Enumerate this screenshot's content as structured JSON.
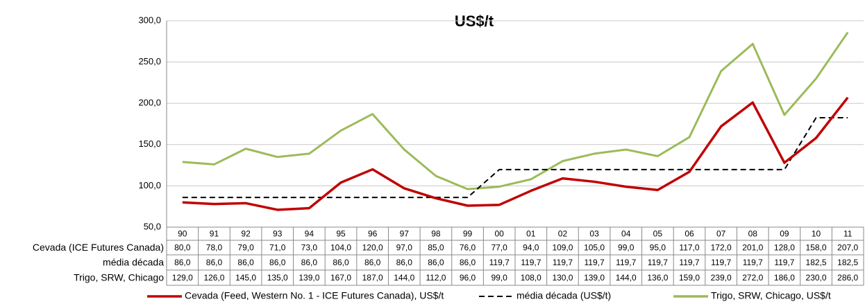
{
  "chart_data": {
    "type": "line",
    "title": "US$/t",
    "categories": [
      "90",
      "91",
      "92",
      "93",
      "94",
      "95",
      "96",
      "97",
      "98",
      "99",
      "00",
      "01",
      "02",
      "03",
      "04",
      "05",
      "06",
      "07",
      "08",
      "09",
      "10",
      "11"
    ],
    "ylim": [
      50,
      300
    ],
    "yticks": [
      {
        "value": 50,
        "label": "50,0"
      },
      {
        "value": 100,
        "label": "100,0"
      },
      {
        "value": 150,
        "label": "150,0"
      },
      {
        "value": 200,
        "label": "200,0"
      },
      {
        "value": 250,
        "label": "250,0"
      },
      {
        "value": 300,
        "label": "300,0"
      }
    ],
    "grid": true,
    "legend": "bottom",
    "series": [
      {
        "name": "Cevada (Feed, Western No. 1 - ICE Futures Canada), US$/t",
        "table_label": "Cevada (ICE Futures Canada)",
        "color": "#c00000",
        "dashed": false,
        "values": [
          80,
          78,
          79,
          71,
          73,
          104,
          120,
          97,
          85,
          76,
          77,
          94,
          109,
          105,
          99,
          95,
          117,
          172,
          201,
          128,
          158,
          207
        ],
        "value_labels": [
          "80,0",
          "78,0",
          "79,0",
          "71,0",
          "73,0",
          "104,0",
          "120,0",
          "97,0",
          "85,0",
          "76,0",
          "77,0",
          "94,0",
          "109,0",
          "105,0",
          "99,0",
          "95,0",
          "117,0",
          "172,0",
          "201,0",
          "128,0",
          "158,0",
          "207,0"
        ]
      },
      {
        "name": "média década (US$/t)",
        "table_label": "média década",
        "color": "#000000",
        "dashed": true,
        "values": [
          86,
          86,
          86,
          86,
          86,
          86,
          86,
          86,
          86,
          86,
          119.7,
          119.7,
          119.7,
          119.7,
          119.7,
          119.7,
          119.7,
          119.7,
          119.7,
          119.7,
          182.5,
          182.5
        ],
        "value_labels": [
          "86,0",
          "86,0",
          "86,0",
          "86,0",
          "86,0",
          "86,0",
          "86,0",
          "86,0",
          "86,0",
          "86,0",
          "119,7",
          "119,7",
          "119,7",
          "119,7",
          "119,7",
          "119,7",
          "119,7",
          "119,7",
          "119,7",
          "119,7",
          "182,5",
          "182,5"
        ]
      },
      {
        "name": "Trigo, SRW, Chicago, US$/t",
        "table_label": "Trigo, SRW, Chicago",
        "color": "#9bbb59",
        "dashed": false,
        "values": [
          129,
          126,
          145,
          135,
          139,
          167,
          187,
          144,
          112,
          96,
          99,
          108,
          130,
          139,
          144,
          136,
          159,
          239,
          272,
          186,
          230,
          286
        ],
        "value_labels": [
          "129,0",
          "126,0",
          "145,0",
          "135,0",
          "139,0",
          "167,0",
          "187,0",
          "144,0",
          "112,0",
          "96,0",
          "99,0",
          "108,0",
          "130,0",
          "139,0",
          "144,0",
          "136,0",
          "159,0",
          "239,0",
          "272,0",
          "186,0",
          "230,0",
          "286,0"
        ]
      }
    ]
  }
}
